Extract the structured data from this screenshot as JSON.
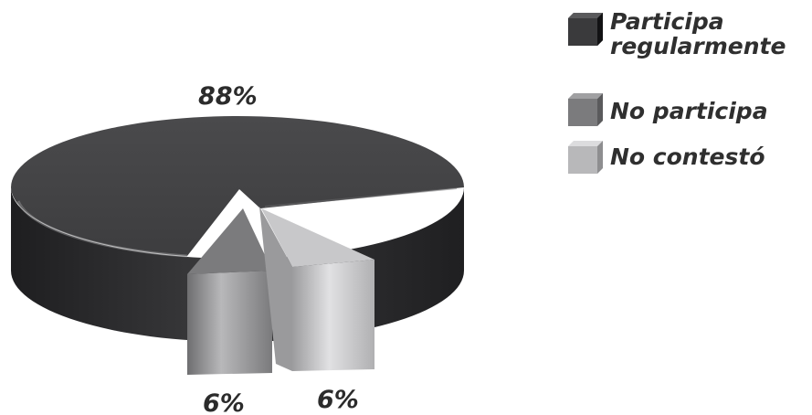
{
  "chart_data": {
    "type": "pie",
    "style": "3d-exploded",
    "series": [
      {
        "legend_lines": [
          "Participa",
          "regularmente"
        ],
        "value": 88,
        "label": "88%",
        "color": "#3a3a3c"
      },
      {
        "legend_lines": [
          "No participa"
        ],
        "value": 6,
        "label": "6%",
        "color": "#7b7b7d"
      },
      {
        "legend_lines": [
          "No contestó"
        ],
        "value": 6,
        "label": "6%",
        "color": "#b8b8ba"
      }
    ],
    "legend_position": "top-right"
  }
}
